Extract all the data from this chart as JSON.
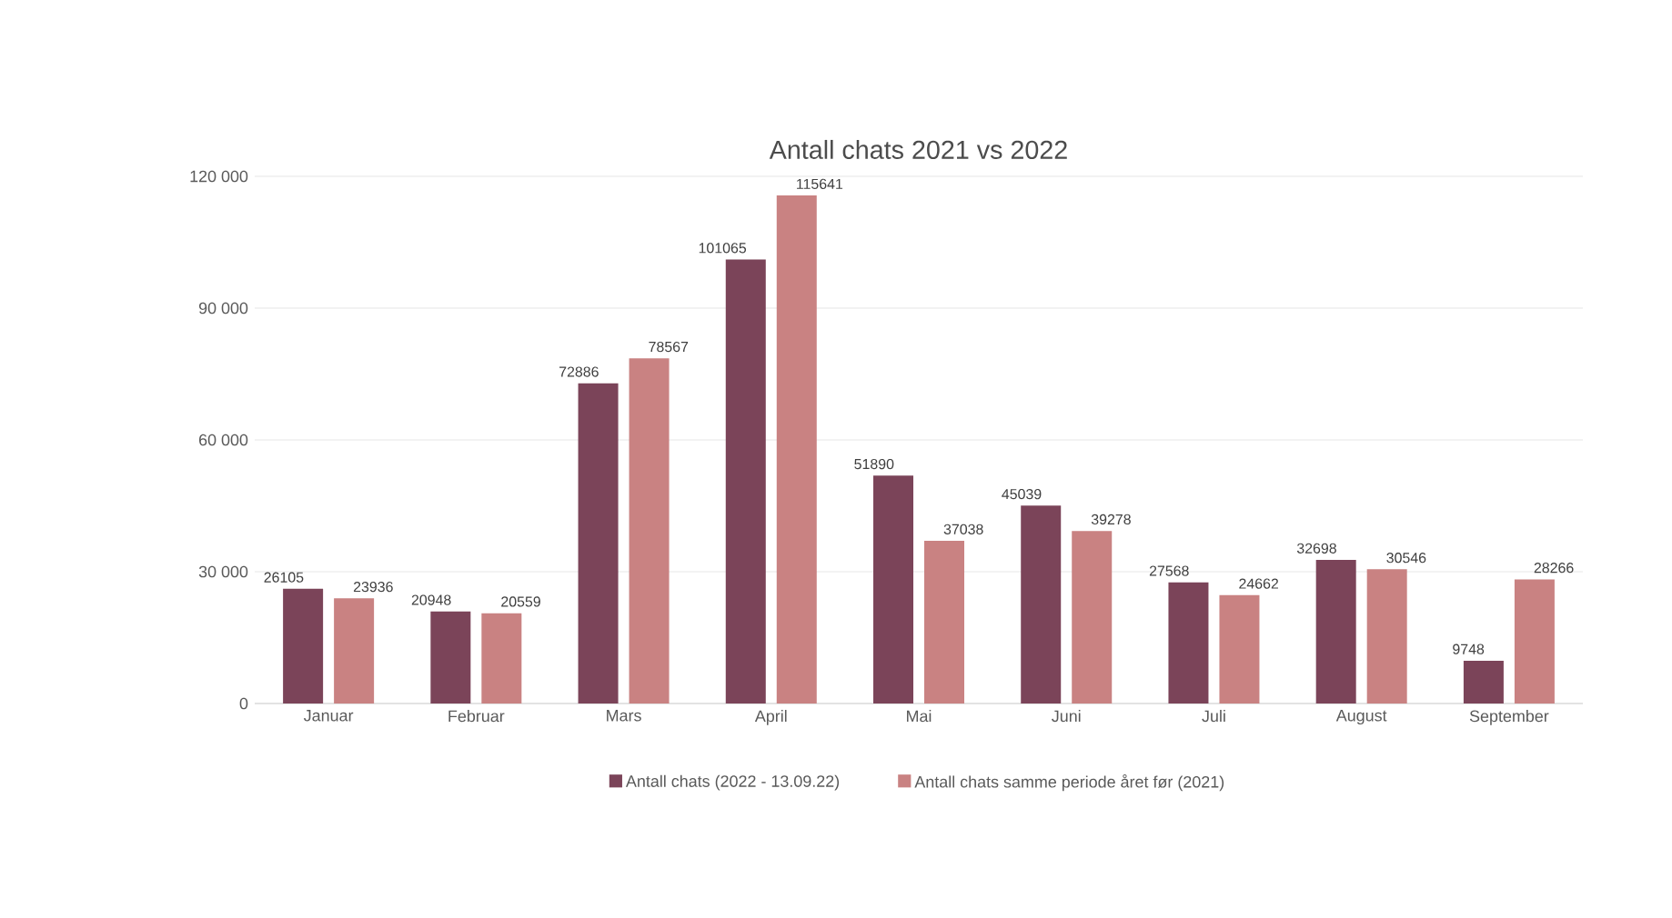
{
  "chart_data": {
    "type": "bar",
    "title": "Antall chats 2021 vs 2022",
    "categories": [
      "Januar",
      "Februar",
      "Mars",
      "April",
      "Mai",
      "Juni",
      "Juli",
      "August",
      "September"
    ],
    "series": [
      {
        "name": "Antall chats (2022 - 13.09.22)",
        "color": "#7b4459",
        "values": [
          26105,
          20948,
          72886,
          101065,
          51890,
          45039,
          27568,
          32698,
          9748
        ]
      },
      {
        "name": "Antall chats samme periode året før (2021)",
        "color": "#c98282",
        "values": [
          23936,
          20559,
          78567,
          115641,
          37038,
          39278,
          24662,
          30546,
          28266
        ]
      }
    ],
    "ylim": [
      0,
      120000
    ],
    "yticks": [
      0,
      {
        "value": 30000,
        "label": "30 000"
      },
      {
        "value": 60000,
        "label": "60 000"
      },
      {
        "value": 90000,
        "label": "90 000"
      },
      {
        "value": 120000,
        "label": "120 000"
      }
    ],
    "grid": "y",
    "legend": "bottom",
    "data_labels": true
  }
}
